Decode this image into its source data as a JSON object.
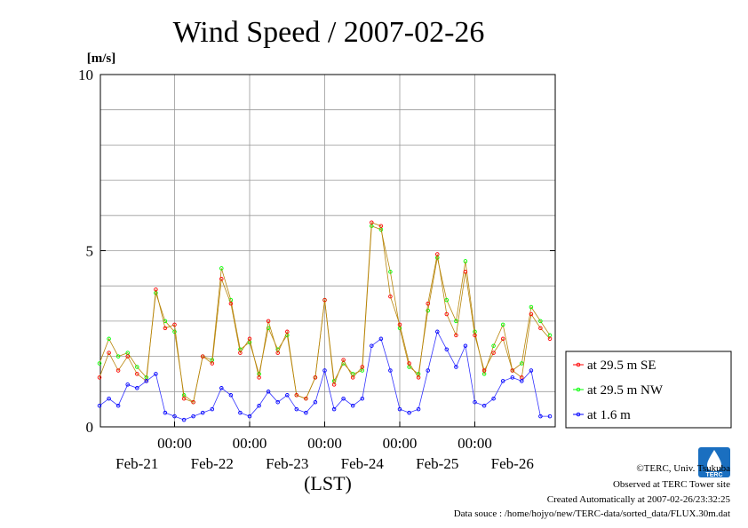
{
  "chart_data": {
    "type": "line",
    "title": "Wind Speed / 2007-02-26",
    "ylabel": "[m/s]",
    "xlabel": "(LST)",
    "ylim": [
      0,
      10
    ],
    "yticks": [
      "0",
      "5",
      "10"
    ],
    "xlim": [
      0,
      6
    ],
    "xtick_times": [
      "00:00",
      "00:00",
      "00:00",
      "00:00",
      "00:00"
    ],
    "xtick_dates": [
      "Feb-21",
      "Feb-22",
      "Feb-23",
      "Feb-24",
      "Feb-25",
      "Feb-26"
    ],
    "grid": true,
    "legend_position": "right",
    "series": [
      {
        "name": "at 29.5 m SE",
        "color": "#ff0000",
        "x": [
          0.0,
          0.125,
          0.25,
          0.375,
          0.5,
          0.625,
          0.75,
          0.875,
          1.0,
          1.125,
          1.25,
          1.375,
          1.5,
          1.625,
          1.75,
          1.875,
          2.0,
          2.125,
          2.25,
          2.375,
          2.5,
          2.625,
          2.75,
          2.875,
          3.0,
          3.125,
          3.25,
          3.375,
          3.5,
          3.625,
          3.75,
          3.875,
          4.0,
          4.125,
          4.25,
          4.375,
          4.5,
          4.625,
          4.75,
          4.875,
          5.0,
          5.125,
          5.25,
          5.375,
          5.5,
          5.625,
          5.75,
          5.875,
          6.0
        ],
        "values": [
          1.4,
          2.1,
          1.6,
          2.0,
          1.5,
          1.3,
          3.9,
          2.8,
          2.9,
          0.8,
          0.7,
          2.0,
          1.8,
          4.2,
          3.5,
          2.1,
          2.5,
          1.4,
          3.0,
          2.1,
          2.7,
          0.9,
          0.8,
          1.4,
          3.6,
          1.2,
          1.9,
          1.4,
          1.7,
          5.8,
          5.7,
          3.7,
          2.9,
          1.8,
          1.4,
          3.5,
          4.9,
          3.2,
          2.6,
          4.4,
          2.6,
          1.6,
          2.1,
          2.5,
          1.6,
          1.4,
          3.2,
          2.8,
          2.5
        ]
      },
      {
        "name": "at 29.5 m NW",
        "color": "#00ff00",
        "x": [
          0.0,
          0.125,
          0.25,
          0.375,
          0.5,
          0.625,
          0.75,
          0.875,
          1.0,
          1.125,
          1.25,
          1.375,
          1.5,
          1.625,
          1.75,
          1.875,
          2.0,
          2.125,
          2.25,
          2.375,
          2.5,
          2.625,
          2.75,
          2.875,
          3.0,
          3.125,
          3.25,
          3.375,
          3.5,
          3.625,
          3.75,
          3.875,
          4.0,
          4.125,
          4.25,
          4.375,
          4.5,
          4.625,
          4.75,
          4.875,
          5.0,
          5.125,
          5.25,
          5.375,
          5.5,
          5.625,
          5.75,
          5.875,
          6.0
        ],
        "values": [
          1.8,
          2.5,
          2.0,
          2.1,
          1.7,
          1.4,
          3.8,
          3.0,
          2.7,
          0.9,
          0.7,
          2.0,
          1.9,
          4.5,
          3.6,
          2.2,
          2.4,
          1.5,
          2.8,
          2.2,
          2.6,
          0.9,
          0.8,
          1.4,
          3.6,
          1.3,
          1.8,
          1.5,
          1.6,
          5.7,
          5.6,
          4.4,
          2.8,
          1.7,
          1.5,
          3.3,
          4.8,
          3.6,
          3.0,
          4.7,
          2.7,
          1.5,
          2.3,
          2.9,
          1.6,
          1.8,
          3.4,
          3.0,
          2.6
        ]
      },
      {
        "name": "at 1.6 m",
        "color": "#0000ff",
        "x": [
          0.0,
          0.125,
          0.25,
          0.375,
          0.5,
          0.625,
          0.75,
          0.875,
          1.0,
          1.125,
          1.25,
          1.375,
          1.5,
          1.625,
          1.75,
          1.875,
          2.0,
          2.125,
          2.25,
          2.375,
          2.5,
          2.625,
          2.75,
          2.875,
          3.0,
          3.125,
          3.25,
          3.375,
          3.5,
          3.625,
          3.75,
          3.875,
          4.0,
          4.125,
          4.25,
          4.375,
          4.5,
          4.625,
          4.75,
          4.875,
          5.0,
          5.125,
          5.25,
          5.375,
          5.5,
          5.625,
          5.75,
          5.875,
          6.0
        ],
        "values": [
          0.6,
          0.8,
          0.6,
          1.2,
          1.1,
          1.3,
          1.5,
          0.4,
          0.3,
          0.2,
          0.3,
          0.4,
          0.5,
          1.1,
          0.9,
          0.4,
          0.3,
          0.6,
          1.0,
          0.7,
          0.9,
          0.5,
          0.4,
          0.7,
          1.6,
          0.5,
          0.8,
          0.6,
          0.8,
          2.3,
          2.5,
          1.6,
          0.5,
          0.4,
          0.5,
          1.6,
          2.7,
          2.2,
          1.7,
          2.3,
          0.7,
          0.6,
          0.8,
          1.3,
          1.4,
          1.3,
          1.6,
          0.3,
          0.3
        ]
      }
    ]
  },
  "credits": {
    "copyright": "©TERC, Univ. Tsukuba",
    "observed": "Observed at TERC Tower site",
    "created": "Created Automatically at 2007-02-26/23:32:25",
    "source": "Data souce : /home/hojyo/new/TERC-data/sorted_data/FLUX.30m.dat",
    "logo_text": "TERC"
  }
}
